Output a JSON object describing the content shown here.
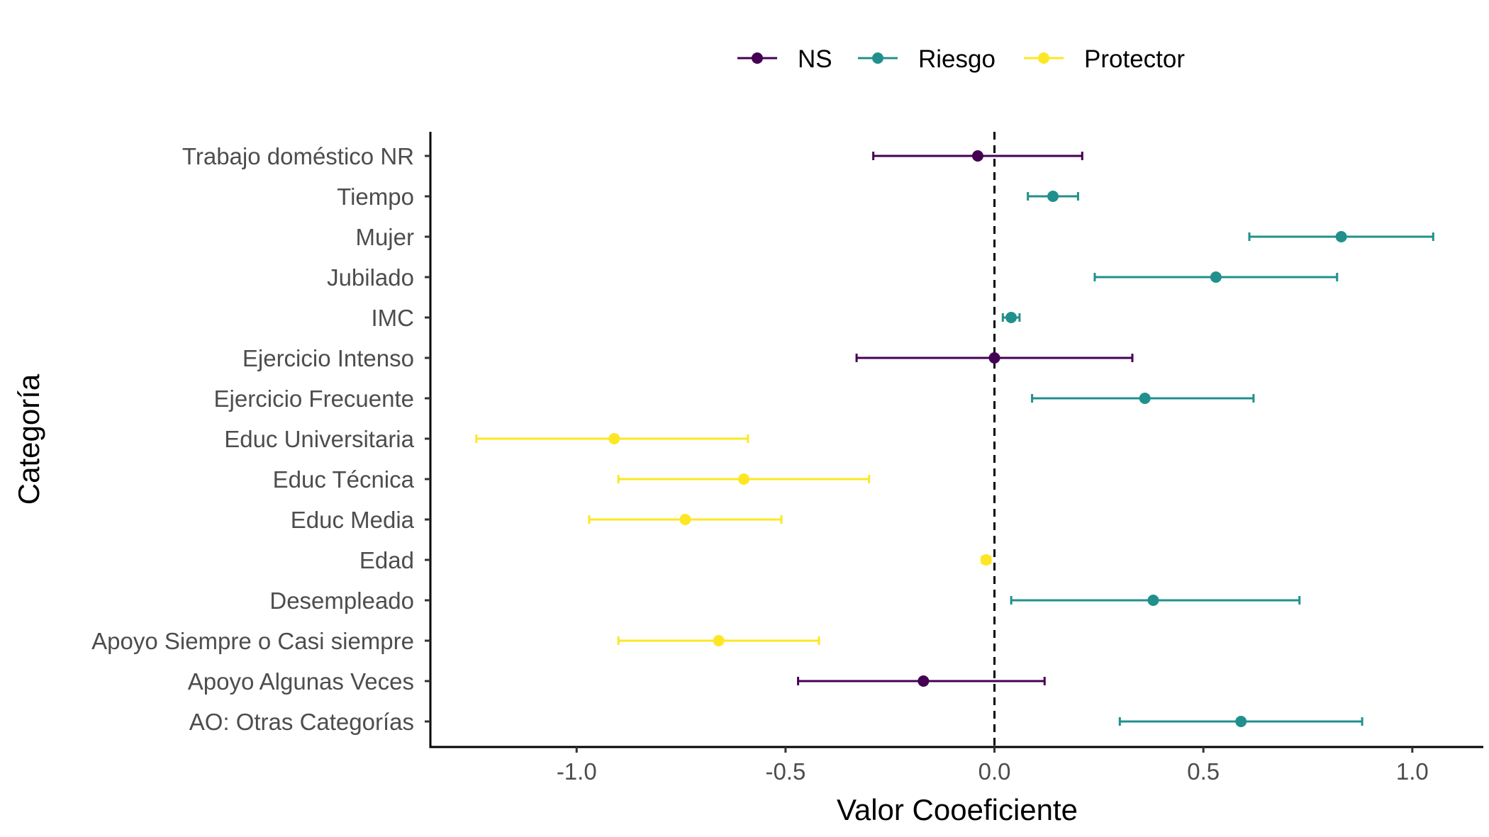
{
  "chart_data": {
    "type": "errorbar",
    "title": "",
    "xlabel": "Valor Cooeficiente",
    "ylabel": "Categoría",
    "xlim": [
      -1.35,
      1.17
    ],
    "x_ticks": [
      -1.0,
      -0.5,
      0.0,
      0.5,
      1.0
    ],
    "x_tick_labels": [
      "-1.0",
      "-0.5",
      "0.0",
      "0.5",
      "1.0"
    ],
    "reference_line": {
      "x": 0,
      "style": "dashed"
    },
    "grid": false,
    "legend": {
      "position": "top",
      "entries": [
        {
          "name": "NS",
          "color": "#440154"
        },
        {
          "name": "Riesgo",
          "color": "#21908C"
        },
        {
          "name": "Protector",
          "color": "#FDE725"
        }
      ]
    },
    "categories": [
      "Trabajo doméstico NR",
      "Tiempo",
      "Mujer",
      "Jubilado",
      "IMC",
      "Ejercicio Intenso",
      "Ejercicio Frecuente",
      "Educ Universitaria",
      "Educ Técnica",
      "Educ Media",
      "Edad",
      "Desempleado",
      "Apoyo Siempre o Casi siempre",
      "Apoyo Algunas Veces",
      "AO: Otras Categorías"
    ],
    "points": [
      {
        "category": "Trabajo doméstico NR",
        "group": "NS",
        "estimate": -0.04,
        "low": -0.29,
        "high": 0.21
      },
      {
        "category": "Tiempo",
        "group": "Riesgo",
        "estimate": 0.14,
        "low": 0.08,
        "high": 0.2
      },
      {
        "category": "Mujer",
        "group": "Riesgo",
        "estimate": 0.83,
        "low": 0.61,
        "high": 1.05
      },
      {
        "category": "Jubilado",
        "group": "Riesgo",
        "estimate": 0.53,
        "low": 0.24,
        "high": 0.82
      },
      {
        "category": "IMC",
        "group": "Riesgo",
        "estimate": 0.04,
        "low": 0.02,
        "high": 0.06
      },
      {
        "category": "Ejercicio Intenso",
        "group": "NS",
        "estimate": 0.0,
        "low": -0.33,
        "high": 0.33
      },
      {
        "category": "Ejercicio Frecuente",
        "group": "Riesgo",
        "estimate": 0.36,
        "low": 0.09,
        "high": 0.62
      },
      {
        "category": "Educ Universitaria",
        "group": "Protector",
        "estimate": -0.91,
        "low": -1.24,
        "high": -0.59
      },
      {
        "category": "Educ Técnica",
        "group": "Protector",
        "estimate": -0.6,
        "low": -0.9,
        "high": -0.3
      },
      {
        "category": "Educ Media",
        "group": "Protector",
        "estimate": -0.74,
        "low": -0.97,
        "high": -0.51
      },
      {
        "category": "Edad",
        "group": "Protector",
        "estimate": -0.02,
        "low": -0.03,
        "high": -0.01
      },
      {
        "category": "Desempleado",
        "group": "Riesgo",
        "estimate": 0.38,
        "low": 0.04,
        "high": 0.73
      },
      {
        "category": "Apoyo Siempre o Casi siempre",
        "group": "Protector",
        "estimate": -0.66,
        "low": -0.9,
        "high": -0.42
      },
      {
        "category": "Apoyo Algunas Veces",
        "group": "NS",
        "estimate": -0.17,
        "low": -0.47,
        "high": 0.12
      },
      {
        "category": "AO: Otras Categorías",
        "group": "Riesgo",
        "estimate": 0.59,
        "low": 0.3,
        "high": 0.88
      }
    ]
  }
}
